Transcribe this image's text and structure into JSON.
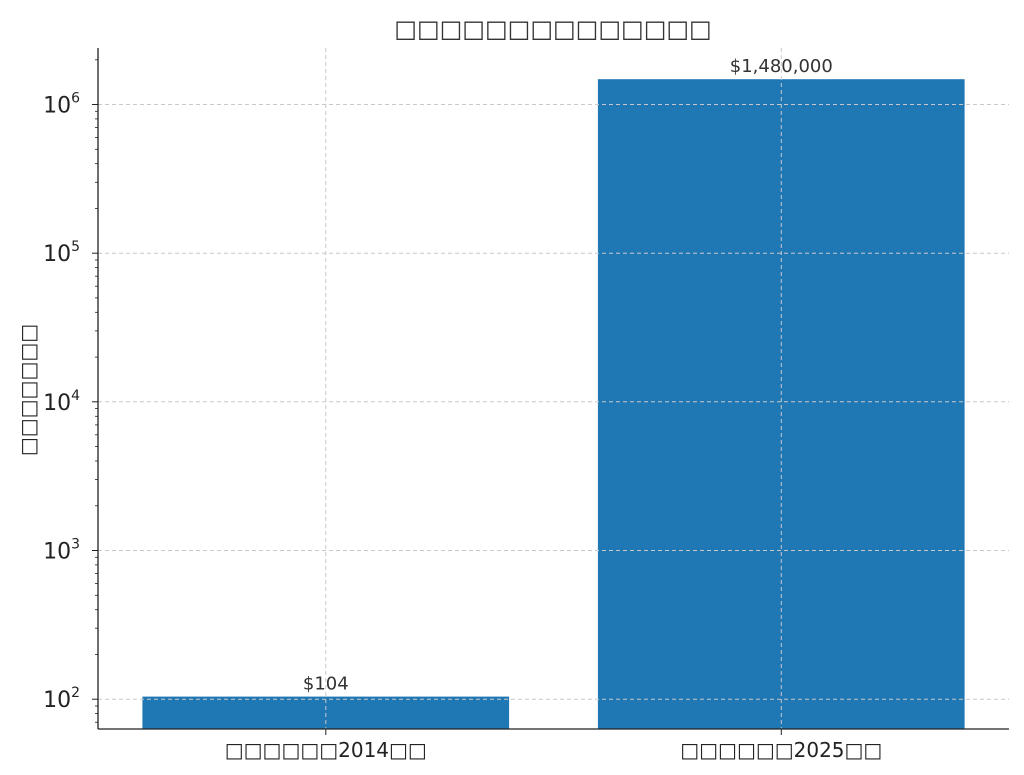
{
  "chart_data": {
    "type": "bar",
    "title": "□□□□□□□□□□□□□□",
    "xlabel": "",
    "ylabel": "□□□□□□□",
    "categories": [
      "□□□□□□2014□□",
      "□□□□□□2025□□"
    ],
    "values": [
      104,
      1480000
    ],
    "value_labels": [
      "$104",
      "$1,480,000"
    ],
    "y_scale": "log",
    "ylim": [
      63,
      2400000
    ],
    "y_ticks": [
      {
        "value": 100,
        "base": "10",
        "exp": "2"
      },
      {
        "value": 1000,
        "base": "10",
        "exp": "3"
      },
      {
        "value": 10000,
        "base": "10",
        "exp": "4"
      },
      {
        "value": 100000,
        "base": "10",
        "exp": "5"
      },
      {
        "value": 1000000,
        "base": "10",
        "exp": "6"
      }
    ],
    "grid": true,
    "bar_color": "#1f77b4"
  }
}
